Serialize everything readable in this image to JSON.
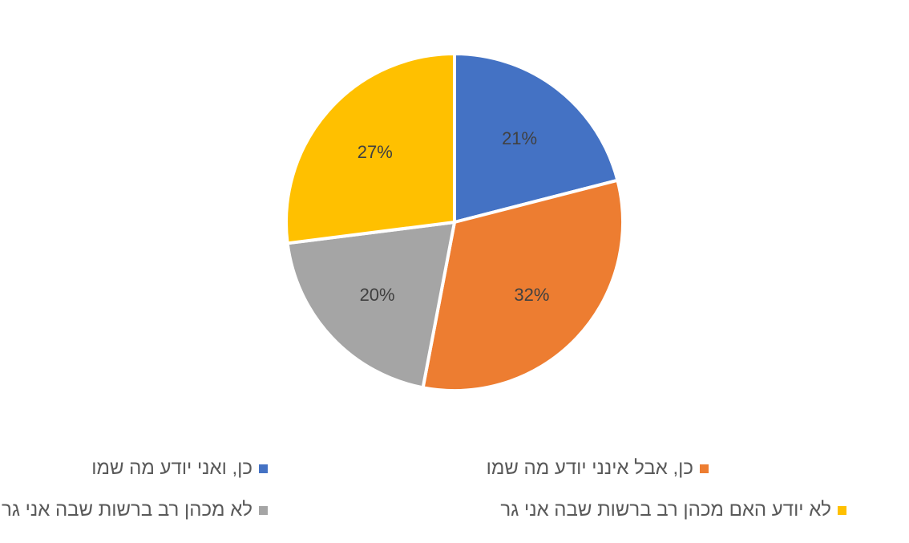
{
  "chart_data": {
    "type": "pie",
    "title": "",
    "categories": [
      "כן, ואני יודע מה שמו",
      "כן, אבל אינני יודע מה שמו",
      "לא מכהן רב ברשות שבה אני גר",
      "לא יודע האם מכהן רב ברשות שבה אני גר"
    ],
    "values": [
      21,
      32,
      20,
      27
    ],
    "data_labels": [
      "21%",
      "32%",
      "20%",
      "27%"
    ],
    "colors": [
      "#4472C4",
      "#ED7D31",
      "#A5A5A5",
      "#FFC000"
    ],
    "legend_placement": "bottom"
  }
}
